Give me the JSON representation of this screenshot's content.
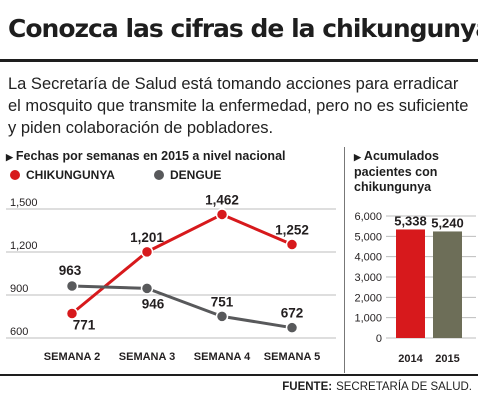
{
  "title": "Conozca las cifras de la chikungunya",
  "subtitle": "La Secretaría de Salud está tomando acciones para erradicar el mosquito que transmite la enfermedad, pero no es suficiente y piden colaboración de pobladores.",
  "source": {
    "label": "FUENTE:",
    "text": "SECRETARÍA DE SALUD."
  },
  "colors": {
    "chikungunya": "#d7191c",
    "dengue": "#58595b",
    "bar2014": "#d7191c",
    "bar2015": "#6d6e58"
  },
  "chart_data": [
    {
      "type": "line",
      "title": "Fechas por semanas en 2015 a nivel nacional",
      "categories": [
        "SEMANA 2",
        "SEMANA 3",
        "SEMANA 4",
        "SEMANA 5"
      ],
      "series": [
        {
          "name": "CHIKUNGUNYA",
          "values": [
            771,
            1201,
            1462,
            1252
          ],
          "labels": [
            "771",
            "1,201",
            "1,462",
            "1,252"
          ]
        },
        {
          "name": "DENGUE",
          "values": [
            963,
            946,
            751,
            672
          ],
          "labels": [
            "963",
            "946",
            "751",
            "672"
          ]
        }
      ],
      "yticks": [
        600,
        900,
        1200,
        1500
      ],
      "ytick_labels": [
        "600",
        "900",
        "1,200",
        "1,500"
      ],
      "ylim": [
        600,
        1500
      ],
      "grid": true,
      "legend": "top-left"
    },
    {
      "type": "bar",
      "title": "Acumulados pacientes con chikungunya",
      "categories": [
        "2014",
        "2015"
      ],
      "values": [
        5338,
        5240
      ],
      "value_labels": [
        "5,338",
        "5,240"
      ],
      "yticks": [
        0,
        1000,
        2000,
        3000,
        4000,
        5000,
        6000
      ],
      "ytick_labels": [
        "0",
        "1,000",
        "2,000",
        "3,000",
        "4,000",
        "5,000",
        "6,000"
      ],
      "ylim": [
        0,
        6000
      ],
      "grid": true
    }
  ]
}
